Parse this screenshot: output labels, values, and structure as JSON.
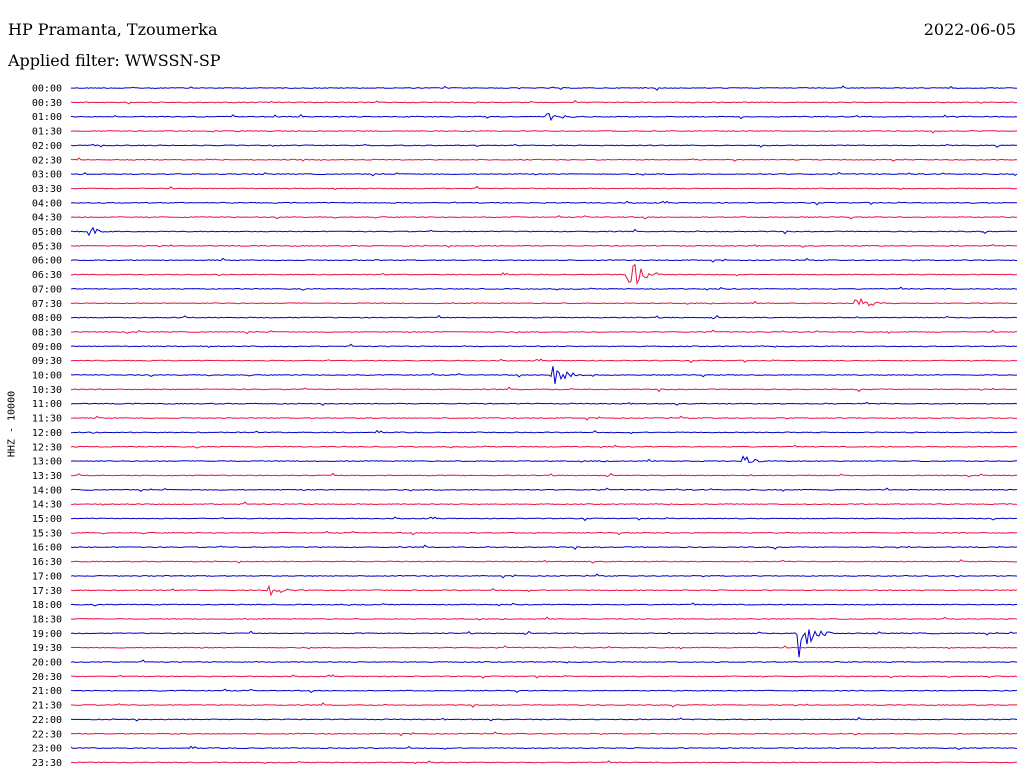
{
  "header": {
    "station": "HP Pramanta, Tzoumerka",
    "date": "2022-06-05",
    "filter": "Applied filter: WWSSN-SP"
  },
  "chart_data": {
    "type": "line",
    "title": "HP Pramanta, Tzoumerka",
    "ylabel": "HHZ - 10000",
    "trace_colors": [
      "#0000cc",
      "#ee1144"
    ],
    "rows": [
      "00:00",
      "00:30",
      "01:00",
      "01:30",
      "02:00",
      "02:30",
      "03:00",
      "03:30",
      "04:00",
      "04:30",
      "05:00",
      "05:30",
      "06:00",
      "06:30",
      "07:00",
      "07:30",
      "08:00",
      "08:30",
      "09:00",
      "09:30",
      "10:00",
      "10:30",
      "11:00",
      "11:30",
      "12:00",
      "12:30",
      "13:00",
      "13:30",
      "14:00",
      "14:30",
      "15:00",
      "15:30",
      "16:00",
      "16:30",
      "17:00",
      "17:30",
      "18:00",
      "18:30",
      "19:00",
      "19:30",
      "20:00",
      "20:30",
      "21:00",
      "21:30",
      "22:00",
      "22:30",
      "23:00",
      "23:30"
    ],
    "events": [
      {
        "row": 2,
        "pos": 0.5,
        "amp": 8
      },
      {
        "row": 10,
        "pos": 0.02,
        "amp": 7
      },
      {
        "row": 13,
        "pos": 0.59,
        "amp": 22
      },
      {
        "row": 15,
        "pos": 0.83,
        "amp": 10
      },
      {
        "row": 20,
        "pos": 0.51,
        "amp": 15
      },
      {
        "row": 26,
        "pos": 0.71,
        "amp": 6
      },
      {
        "row": 35,
        "pos": 0.21,
        "amp": 8
      },
      {
        "row": 38,
        "pos": 0.77,
        "amp": 32
      }
    ]
  }
}
